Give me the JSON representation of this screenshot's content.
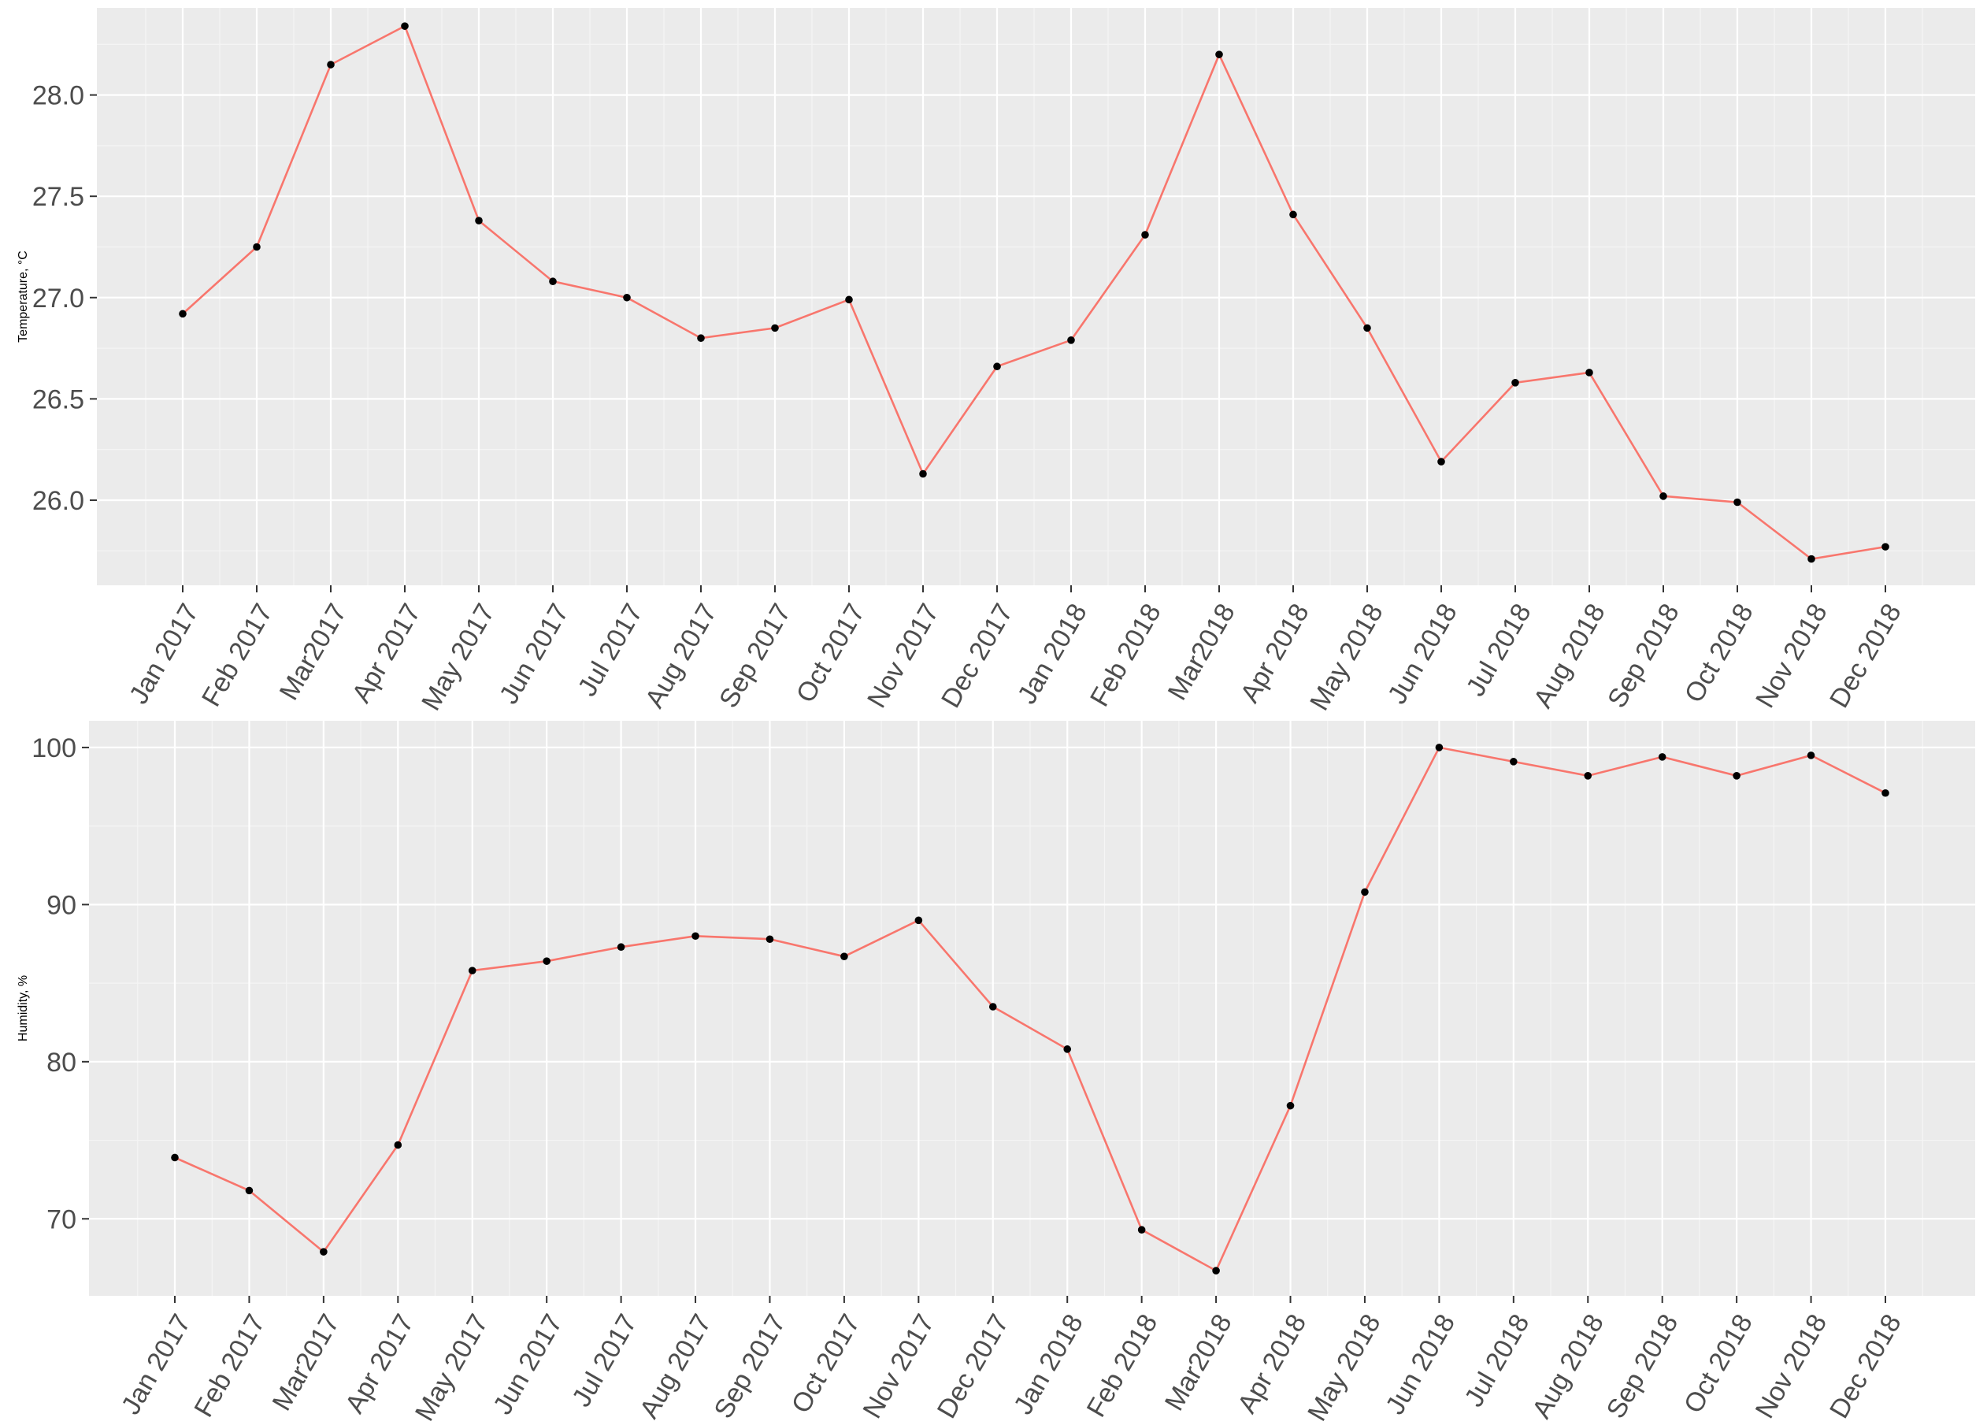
{
  "chart_data": [
    {
      "type": "line",
      "title": "",
      "xlabel": "",
      "ylabel": "Temperature, °C",
      "categories": [
        "Jan 2017",
        "Feb 2017",
        "Mar2017",
        "Apr 2017",
        "May 2017",
        "Jun 2017",
        "Jul 2017",
        "Aug 2017",
        "Sep 2017",
        "Oct 2017",
        "Nov 2017",
        "Dec 2017",
        "Jan 2018",
        "Feb 2018",
        "Mar2018",
        "Apr 2018",
        "May 2018",
        "Jun 2018",
        "Jul 2018",
        "Aug 2018",
        "Sep 2018",
        "Oct 2018",
        "Nov 2018",
        "Dec 2018"
      ],
      "series": [
        {
          "values": [
            26.92,
            27.25,
            28.15,
            28.34,
            27.38,
            27.08,
            27.0,
            26.8,
            26.85,
            26.99,
            26.13,
            26.66,
            26.79,
            27.31,
            28.2,
            27.41,
            26.85,
            26.19,
            26.58,
            26.63,
            26.02,
            25.99,
            25.71,
            25.77
          ]
        }
      ],
      "yticks": [
        26.0,
        26.5,
        27.0,
        27.5,
        28.0
      ],
      "ylim": [
        25.58,
        28.43
      ],
      "grid": true,
      "line_color": "#f8766d",
      "point_color": "#000000",
      "panel_color": "#ebebeb"
    },
    {
      "type": "line",
      "title": "",
      "xlabel": "",
      "ylabel": "Humidity, %",
      "categories": [
        "Jan 2017",
        "Feb 2017",
        "Mar2017",
        "Apr 2017",
        "May 2017",
        "Jun 2017",
        "Jul 2017",
        "Aug 2017",
        "Sep 2017",
        "Oct 2017",
        "Nov 2017",
        "Dec 2017",
        "Jan 2018",
        "Feb 2018",
        "Mar2018",
        "Apr 2018",
        "May 2018",
        "Jun 2018",
        "Jul 2018",
        "Aug 2018",
        "Sep 2018",
        "Oct 2018",
        "Nov 2018",
        "Dec 2018"
      ],
      "series": [
        {
          "values": [
            73.9,
            71.8,
            67.9,
            74.7,
            85.8,
            86.4,
            87.3,
            88.0,
            87.8,
            86.7,
            89.0,
            83.5,
            80.8,
            69.3,
            66.7,
            77.2,
            90.8,
            100.0,
            99.1,
            98.2,
            99.4,
            98.2,
            99.5,
            97.1
          ]
        }
      ],
      "yticks": [
        70,
        80,
        90,
        100
      ],
      "ylim": [
        65.1,
        101.7
      ],
      "grid": true,
      "line_color": "#f8766d",
      "point_color": "#000000",
      "panel_color": "#ebebeb"
    }
  ]
}
